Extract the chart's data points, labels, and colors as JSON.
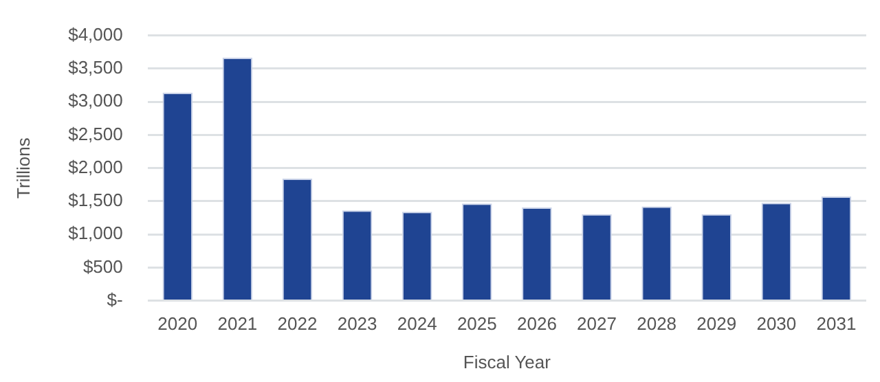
{
  "chart_data": {
    "type": "bar",
    "xlabel": "Fiscal Year",
    "ylabel": "Trillions",
    "categories": [
      "2020",
      "2021",
      "2022",
      "2023",
      "2024",
      "2025",
      "2026",
      "2027",
      "2028",
      "2029",
      "2030",
      "2031"
    ],
    "values": [
      3135,
      3665,
      1840,
      1360,
      1340,
      1465,
      1405,
      1305,
      1420,
      1305,
      1475,
      1570
    ],
    "color": "#1f4492",
    "ylim": [
      0,
      4000
    ],
    "yticks": [
      {
        "value": 0,
        "label": "$-"
      },
      {
        "value": 500,
        "label": "$500"
      },
      {
        "value": 1000,
        "label": "$1,000"
      },
      {
        "value": 1500,
        "label": "$1,500"
      },
      {
        "value": 2000,
        "label": "$2,000"
      },
      {
        "value": 2500,
        "label": "$2,500"
      },
      {
        "value": 3000,
        "label": "$3,000"
      },
      {
        "value": 3500,
        "label": "$3,500"
      },
      {
        "value": 4000,
        "label": "$4,000"
      }
    ],
    "grid": "y"
  }
}
